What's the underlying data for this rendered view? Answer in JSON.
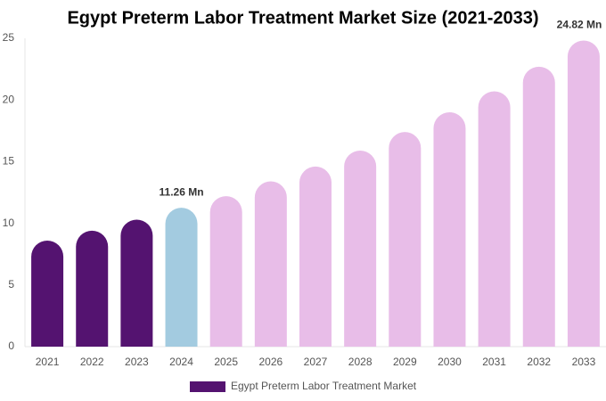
{
  "chart_data": {
    "type": "bar",
    "title": "Egypt Preterm Labor Treatment Market Size (2021-2033)",
    "categories": [
      "2021",
      "2022",
      "2023",
      "2024",
      "2025",
      "2026",
      "2027",
      "2028",
      "2029",
      "2030",
      "2031",
      "2032",
      "2033"
    ],
    "series": [
      {
        "name": "Egypt Preterm Labor Treatment Market",
        "color": "#541370",
        "colors": [
          "#541370",
          "#541370",
          "#541370",
          "#a3cbe0",
          "#e8bde8",
          "#e8bde8",
          "#e8bde8",
          "#e8bde8",
          "#e8bde8",
          "#e8bde8",
          "#e8bde8",
          "#e8bde8",
          "#e8bde8"
        ],
        "values": [
          8.6,
          9.4,
          10.3,
          11.26,
          12.2,
          13.4,
          14.6,
          15.9,
          17.4,
          19.0,
          20.7,
          22.7,
          24.82
        ],
        "value_labels": [
          null,
          null,
          null,
          "11.26 Mn",
          null,
          null,
          null,
          null,
          null,
          null,
          null,
          null,
          "24.82 Mn"
        ]
      }
    ],
    "ylim": [
      0,
      25
    ],
    "yticks": [
      0,
      5,
      10,
      15,
      20,
      25
    ],
    "grid": false
  }
}
